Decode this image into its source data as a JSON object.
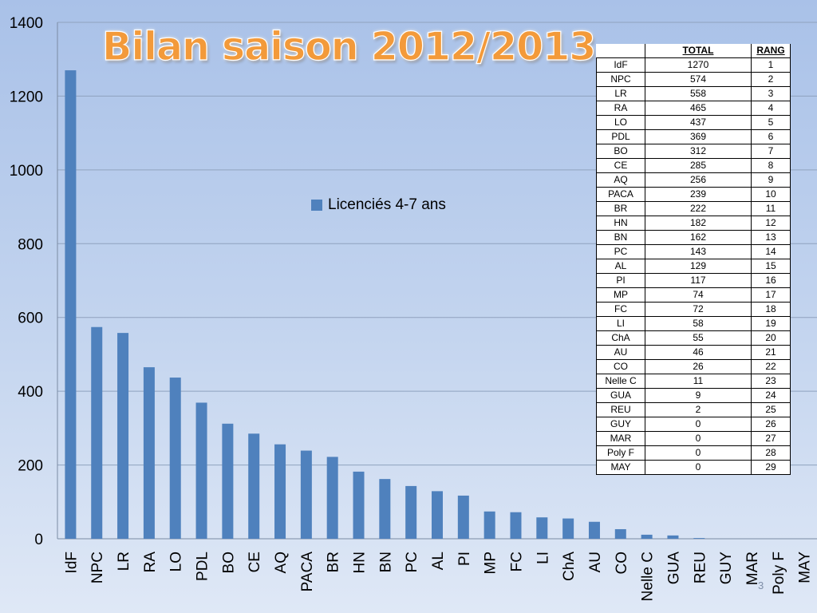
{
  "slide": {
    "title": "Bilan saison 2012/2013",
    "page_number": "3"
  },
  "chart_data": {
    "type": "bar",
    "title": "",
    "xlabel": "",
    "ylabel": "",
    "ylim": [
      0,
      1400
    ],
    "yticks": [
      0,
      200,
      400,
      600,
      800,
      1000,
      1200,
      1400
    ],
    "grid": true,
    "legend_position": "center",
    "color": "#4f81bd",
    "categories": [
      "IdF",
      "NPC",
      "LR",
      "RA",
      "LO",
      "PDL",
      "BO",
      "CE",
      "AQ",
      "PACA",
      "BR",
      "HN",
      "BN",
      "PC",
      "AL",
      "PI",
      "MP",
      "FC",
      "LI",
      "ChA",
      "AU",
      "CO",
      "Nelle C",
      "GUA",
      "REU",
      "GUY",
      "MAR",
      "Poly F",
      "MAY"
    ],
    "series": [
      {
        "name": "Licenciés 4-7 ans",
        "values": [
          1270,
          574,
          558,
          465,
          437,
          369,
          312,
          285,
          256,
          239,
          222,
          182,
          162,
          143,
          129,
          117,
          74,
          72,
          58,
          55,
          46,
          26,
          11,
          9,
          2,
          0,
          0,
          0,
          0
        ]
      }
    ]
  },
  "table": {
    "headers": [
      "",
      "TOTAL",
      "RANG"
    ],
    "rows": [
      [
        "IdF",
        "1270",
        "1"
      ],
      [
        "NPC",
        "574",
        "2"
      ],
      [
        "LR",
        "558",
        "3"
      ],
      [
        "RA",
        "465",
        "4"
      ],
      [
        "LO",
        "437",
        "5"
      ],
      [
        "PDL",
        "369",
        "6"
      ],
      [
        "BO",
        "312",
        "7"
      ],
      [
        "CE",
        "285",
        "8"
      ],
      [
        "AQ",
        "256",
        "9"
      ],
      [
        "PACA",
        "239",
        "10"
      ],
      [
        "BR",
        "222",
        "11"
      ],
      [
        "HN",
        "182",
        "12"
      ],
      [
        "BN",
        "162",
        "13"
      ],
      [
        "PC",
        "143",
        "14"
      ],
      [
        "AL",
        "129",
        "15"
      ],
      [
        "PI",
        "117",
        "16"
      ],
      [
        "MP",
        "74",
        "17"
      ],
      [
        "FC",
        "72",
        "18"
      ],
      [
        "LI",
        "58",
        "19"
      ],
      [
        "ChA",
        "55",
        "20"
      ],
      [
        "AU",
        "46",
        "21"
      ],
      [
        "CO",
        "26",
        "22"
      ],
      [
        "Nelle C",
        "11",
        "23"
      ],
      [
        "GUA",
        "9",
        "24"
      ],
      [
        "REU",
        "2",
        "25"
      ],
      [
        "GUY",
        "0",
        "26"
      ],
      [
        "MAR",
        "0",
        "27"
      ],
      [
        "Poly F",
        "0",
        "28"
      ],
      [
        "MAY",
        "0",
        "29"
      ]
    ]
  }
}
